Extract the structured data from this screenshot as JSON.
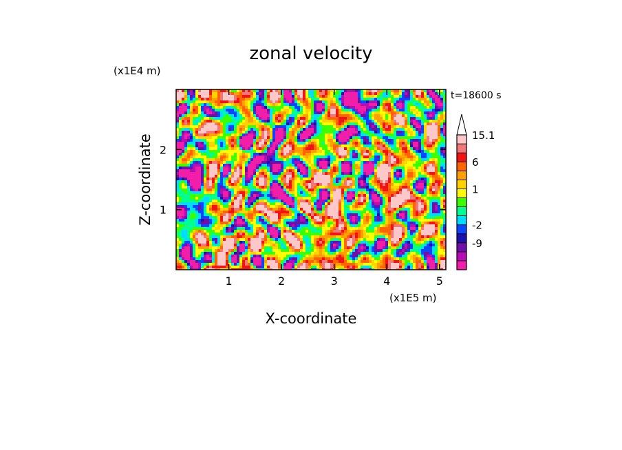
{
  "chart_data": {
    "type": "heatmap",
    "title": "zonal velocity",
    "xlabel": "X-coordinate",
    "ylabel": "Z-coordinate",
    "x_unit": "(x1E5 m)",
    "y_unit": "(x1E4 m)",
    "time_label": "t=18600 s",
    "xlim": [
      0,
      5.12
    ],
    "ylim": [
      0,
      3.0
    ],
    "x_ticks": [
      {
        "value": 1,
        "label": "1"
      },
      {
        "value": 2,
        "label": "2"
      },
      {
        "value": 3,
        "label": "3"
      },
      {
        "value": 4,
        "label": "4"
      },
      {
        "value": 5,
        "label": "5"
      }
    ],
    "y_ticks": [
      {
        "value": 1,
        "label": "1"
      },
      {
        "value": 2,
        "label": "2"
      }
    ],
    "colorbar": {
      "has_overflow_arrow": true,
      "levels": [
        {
          "color": "#f01ea8",
          "label": ""
        },
        {
          "color": "#b40eb4",
          "label": ""
        },
        {
          "color": "#6e0fa8",
          "label": "-9"
        },
        {
          "color": "#1e10aa",
          "label": ""
        },
        {
          "color": "#0a46ff",
          "label": "-2"
        },
        {
          "color": "#00dcff",
          "label": ""
        },
        {
          "color": "#00ff90",
          "label": ""
        },
        {
          "color": "#3cff00",
          "label": ""
        },
        {
          "color": "#ffff00",
          "label": "1"
        },
        {
          "color": "#ffd200",
          "label": ""
        },
        {
          "color": "#ffa000",
          "label": ""
        },
        {
          "color": "#ff6400",
          "label": "6"
        },
        {
          "color": "#f01414",
          "label": ""
        },
        {
          "color": "#f07878",
          "label": ""
        },
        {
          "color": "#ffc8c8",
          "label": "15.1"
        }
      ]
    }
  }
}
